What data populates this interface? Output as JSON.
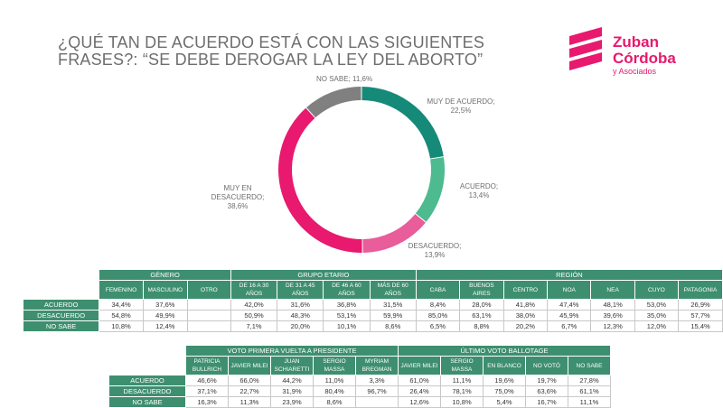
{
  "title": "¿QUÉ TAN DE ACUERDO ESTÁ CON LAS SIGUIENTES FRASES?: “SE DEBE DEROGAR LA LEY DEL ABORTO”",
  "logo": {
    "line1": "Zuban",
    "line2": "Córdoba",
    "sub": "y Asociados"
  },
  "colors": {
    "accent": "#e8196e",
    "table_header": "#3e8f6f"
  },
  "chart_data": {
    "type": "pie",
    "donut": true,
    "categories": [
      "MUY DE ACUERDO",
      "ACUERDO",
      "DESACUERDO",
      "MUY EN DESACUERDO",
      "NO SABE"
    ],
    "values": [
      22.5,
      13.4,
      13.9,
      38.6,
      11.6
    ],
    "value_labels": [
      "22,5%",
      "13,4%",
      "13,9%",
      "38,6%",
      "11,6%"
    ],
    "colors": [
      "#168a78",
      "#4dbb8f",
      "#e85d9a",
      "#e8196e",
      "#808080"
    ]
  },
  "table1": {
    "group_headers": [
      "GÉNERO",
      "GRUPO ETARIO",
      "REGIÓN"
    ],
    "columns": [
      "FEMENINO",
      "MASCULINO",
      "OTRO",
      "DE 16 A 30 AÑOS",
      "DE 31 A 45 AÑOS",
      "DE 46 A 60 AÑOS",
      "MÁS DE 60 AÑOS",
      "CABA",
      "BUENOS AIRES",
      "CENTRO",
      "NOA",
      "NEA",
      "CUYO",
      "PATAGONIA"
    ],
    "rows": [
      {
        "label": "ACUERDO",
        "cells": [
          "34,4%",
          "37,6%",
          "",
          "42,0%",
          "31,6%",
          "36,8%",
          "31,5%",
          "8,4%",
          "28,0%",
          "41,8%",
          "47,4%",
          "48,1%",
          "53,0%",
          "26,9%"
        ]
      },
      {
        "label": "DESACUERDO",
        "cells": [
          "54,8%",
          "49,9%",
          "",
          "50,9%",
          "48,3%",
          "53,1%",
          "59,9%",
          "85,0%",
          "63,1%",
          "38,0%",
          "45,9%",
          "39,6%",
          "35,0%",
          "57,7%"
        ]
      },
      {
        "label": "NO SABE",
        "cells": [
          "10,8%",
          "12,4%",
          "",
          "7,1%",
          "20,0%",
          "10,1%",
          "8,6%",
          "6,5%",
          "8,8%",
          "20,2%",
          "6,7%",
          "12,3%",
          "12,0%",
          "15,4%"
        ]
      }
    ]
  },
  "table2": {
    "group_headers": [
      "VOTO PRIMERA VUELTA A PRESIDENTE",
      "ÚLTIMO VOTO BALLOTAGE"
    ],
    "columns": [
      "PATRICIA BULLRICH",
      "JAVIER MILEI",
      "JUAN SCHIARETTI",
      "SERGIO MASSA",
      "MYRIAM BREGMAN",
      "JAVIER MILEI",
      "SERGIO MASSA",
      "EN BLANCO",
      "NO VOTÓ",
      "NO SABE"
    ],
    "rows": [
      {
        "label": "ACUERDO",
        "cells": [
          "46,6%",
          "66,0%",
          "44,2%",
          "11,0%",
          "3,3%",
          "61,0%",
          "11,1%",
          "19,6%",
          "19,7%",
          "27,8%"
        ]
      },
      {
        "label": "DESACUERDO",
        "cells": [
          "37,1%",
          "22,7%",
          "31,9%",
          "80,4%",
          "96,7%",
          "26,4%",
          "78,1%",
          "75,0%",
          "63,6%",
          "61,1%"
        ]
      },
      {
        "label": "NO SABE",
        "cells": [
          "16,3%",
          "11,3%",
          "23,9%",
          "8,6%",
          "",
          "12,6%",
          "10,8%",
          "5,4%",
          "16,7%",
          "11,1%"
        ]
      }
    ]
  }
}
